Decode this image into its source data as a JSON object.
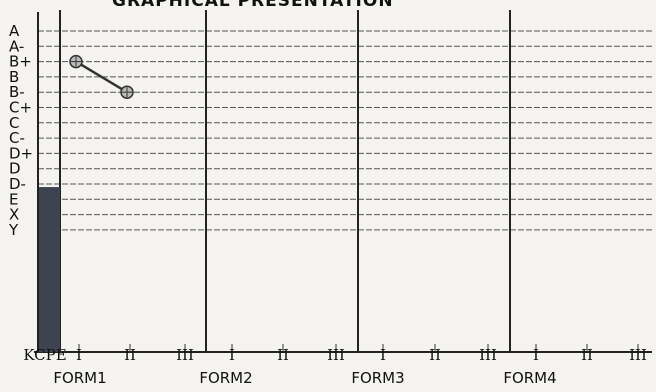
{
  "chart_data": {
    "type": "line",
    "title": "GRAPHICAL PRESENTATION",
    "grades": [
      "A",
      "A-",
      "B+",
      "B",
      "B-",
      "C+",
      "C",
      "C-",
      "D+",
      "D",
      "D-",
      "E",
      "X",
      "Y"
    ],
    "x_categories": [
      "KCPE",
      "I",
      "II",
      "III",
      "I",
      "II",
      "III",
      "I",
      "II",
      "III",
      "I",
      "II",
      "III"
    ],
    "forms": [
      "FORM1",
      "FORM2",
      "FORM3",
      "FORM4"
    ],
    "kcpe_bar": {
      "category": "KCPE",
      "level": "E"
    },
    "series": [
      {
        "points": [
          {
            "x": "FORM1 I",
            "y": "B+"
          },
          {
            "x": "FORM1 II",
            "y": "B-"
          }
        ]
      }
    ],
    "grid": true
  }
}
